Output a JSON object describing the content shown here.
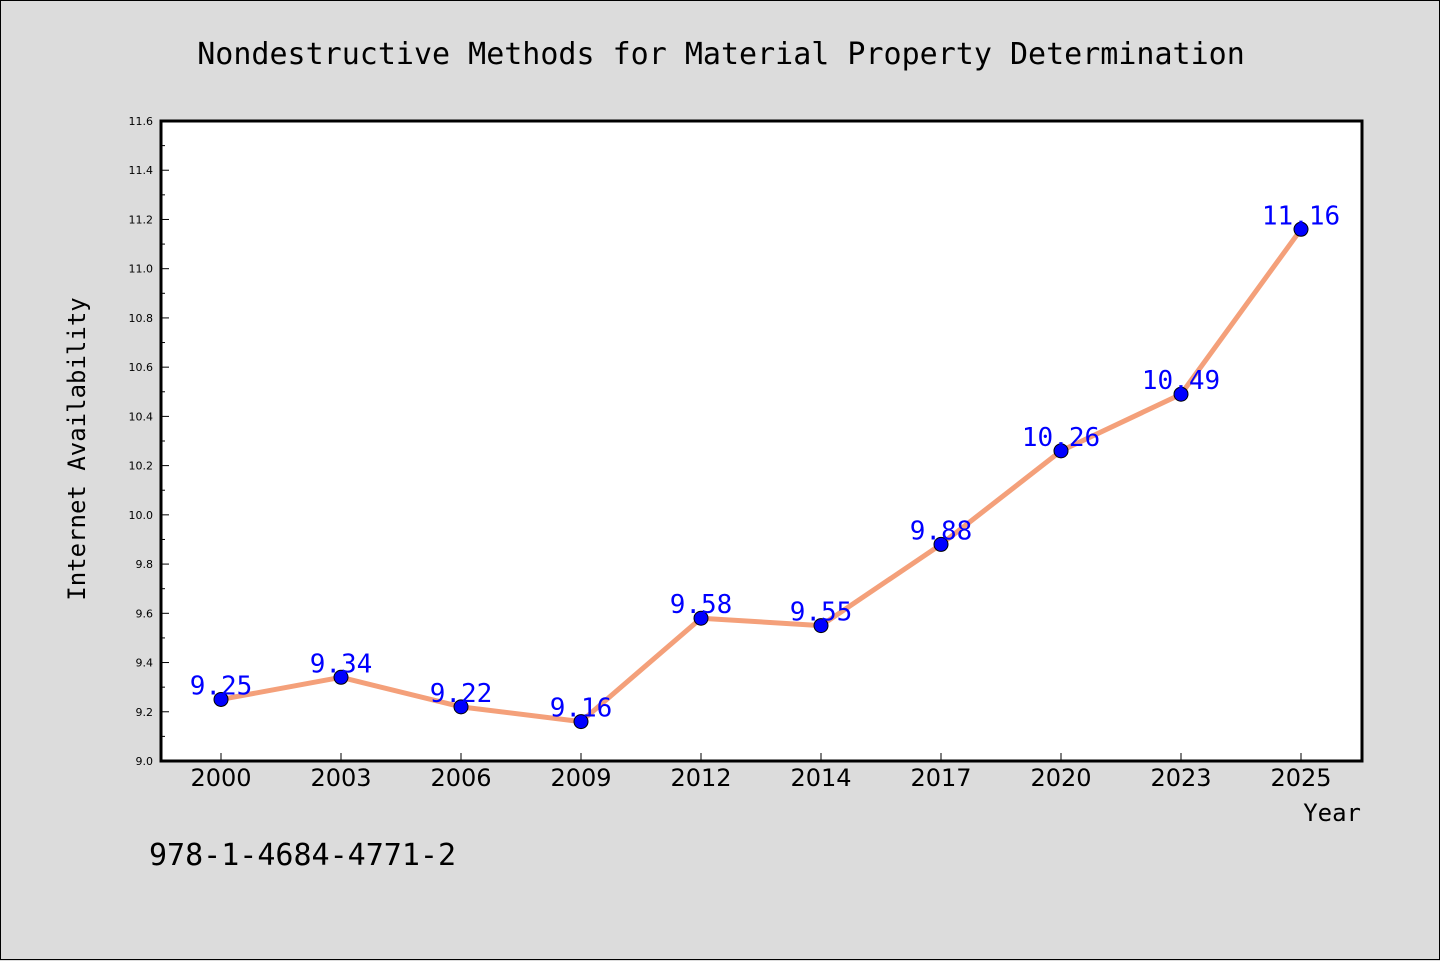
{
  "colors": {
    "background": "#dcdcdc",
    "plot_background": "#ffffff",
    "line": "#f4a07a",
    "marker": "#0000ff",
    "data_label": "#0000ff"
  },
  "footer": {
    "isbn": "978-1-4684-4771-2"
  },
  "chart_data": {
    "type": "line",
    "title": "Nondestructive Methods for Material Property Determination",
    "xlabel": "Year",
    "ylabel": "Internet Availability",
    "categories": [
      "2000",
      "2003",
      "2006",
      "2009",
      "2012",
      "2014",
      "2017",
      "2020",
      "2023",
      "2025"
    ],
    "series": [
      {
        "values": [
          9.25,
          9.34,
          9.22,
          9.16,
          9.58,
          9.55,
          9.88,
          10.26,
          10.49,
          11.16
        ],
        "labels": [
          "9.25",
          "9.34",
          "9.22",
          "9.16",
          "9.58",
          "9.55",
          "9.88",
          "10.26",
          "10.49",
          "11.16"
        ]
      }
    ],
    "ylim": [
      9.0,
      11.6
    ],
    "yticks": [
      "9.0",
      "9.2",
      "9.4",
      "9.6",
      "9.8",
      "10.0",
      "10.2",
      "10.4",
      "10.6",
      "10.8",
      "11.0",
      "11.2",
      "11.4",
      "11.6"
    ],
    "ytick_values": [
      9.0,
      9.2,
      9.4,
      9.6,
      9.8,
      10.0,
      10.2,
      10.4,
      10.6,
      10.8,
      11.0,
      11.2,
      11.4,
      11.6
    ],
    "grid": false,
    "legend": "none"
  }
}
